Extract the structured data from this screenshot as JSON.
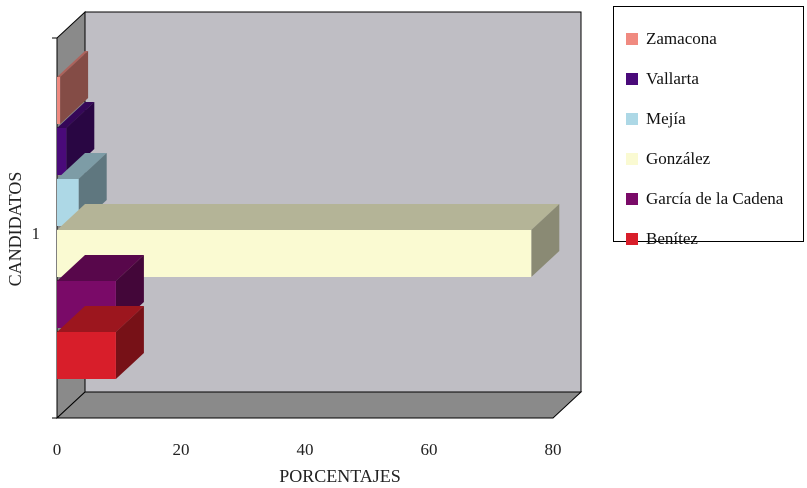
{
  "chart_data": {
    "type": "bar",
    "orientation": "horizontal",
    "style": "3d",
    "categories": [
      "1"
    ],
    "series": [
      {
        "name": "Zamacona",
        "values": [
          0.5
        ],
        "color": "#f08a80"
      },
      {
        "name": "Vallarta",
        "values": [
          1.5
        ],
        "color": "#4a0a7a"
      },
      {
        "name": "Mejía",
        "values": [
          3.5
        ],
        "color": "#add8e6"
      },
      {
        "name": "González",
        "values": [
          76.5
        ],
        "color": "#fafad2"
      },
      {
        "name": "García de la Cadena",
        "values": [
          9.5
        ],
        "color": "#7a0a68"
      },
      {
        "name": "Benítez",
        "values": [
          9.5
        ],
        "color": "#d81e2a"
      }
    ],
    "xlabel": "PORCENTAJES",
    "ylabel": "CANDIDATOS",
    "xlim": [
      0,
      80
    ],
    "xticks": [
      "0",
      "20",
      "40",
      "60",
      "80"
    ],
    "legend_position": "right",
    "colors": {
      "back_wall": "#bfbec4",
      "side_wall": "#8a8a8a",
      "floor": "#8a8a8a"
    }
  }
}
